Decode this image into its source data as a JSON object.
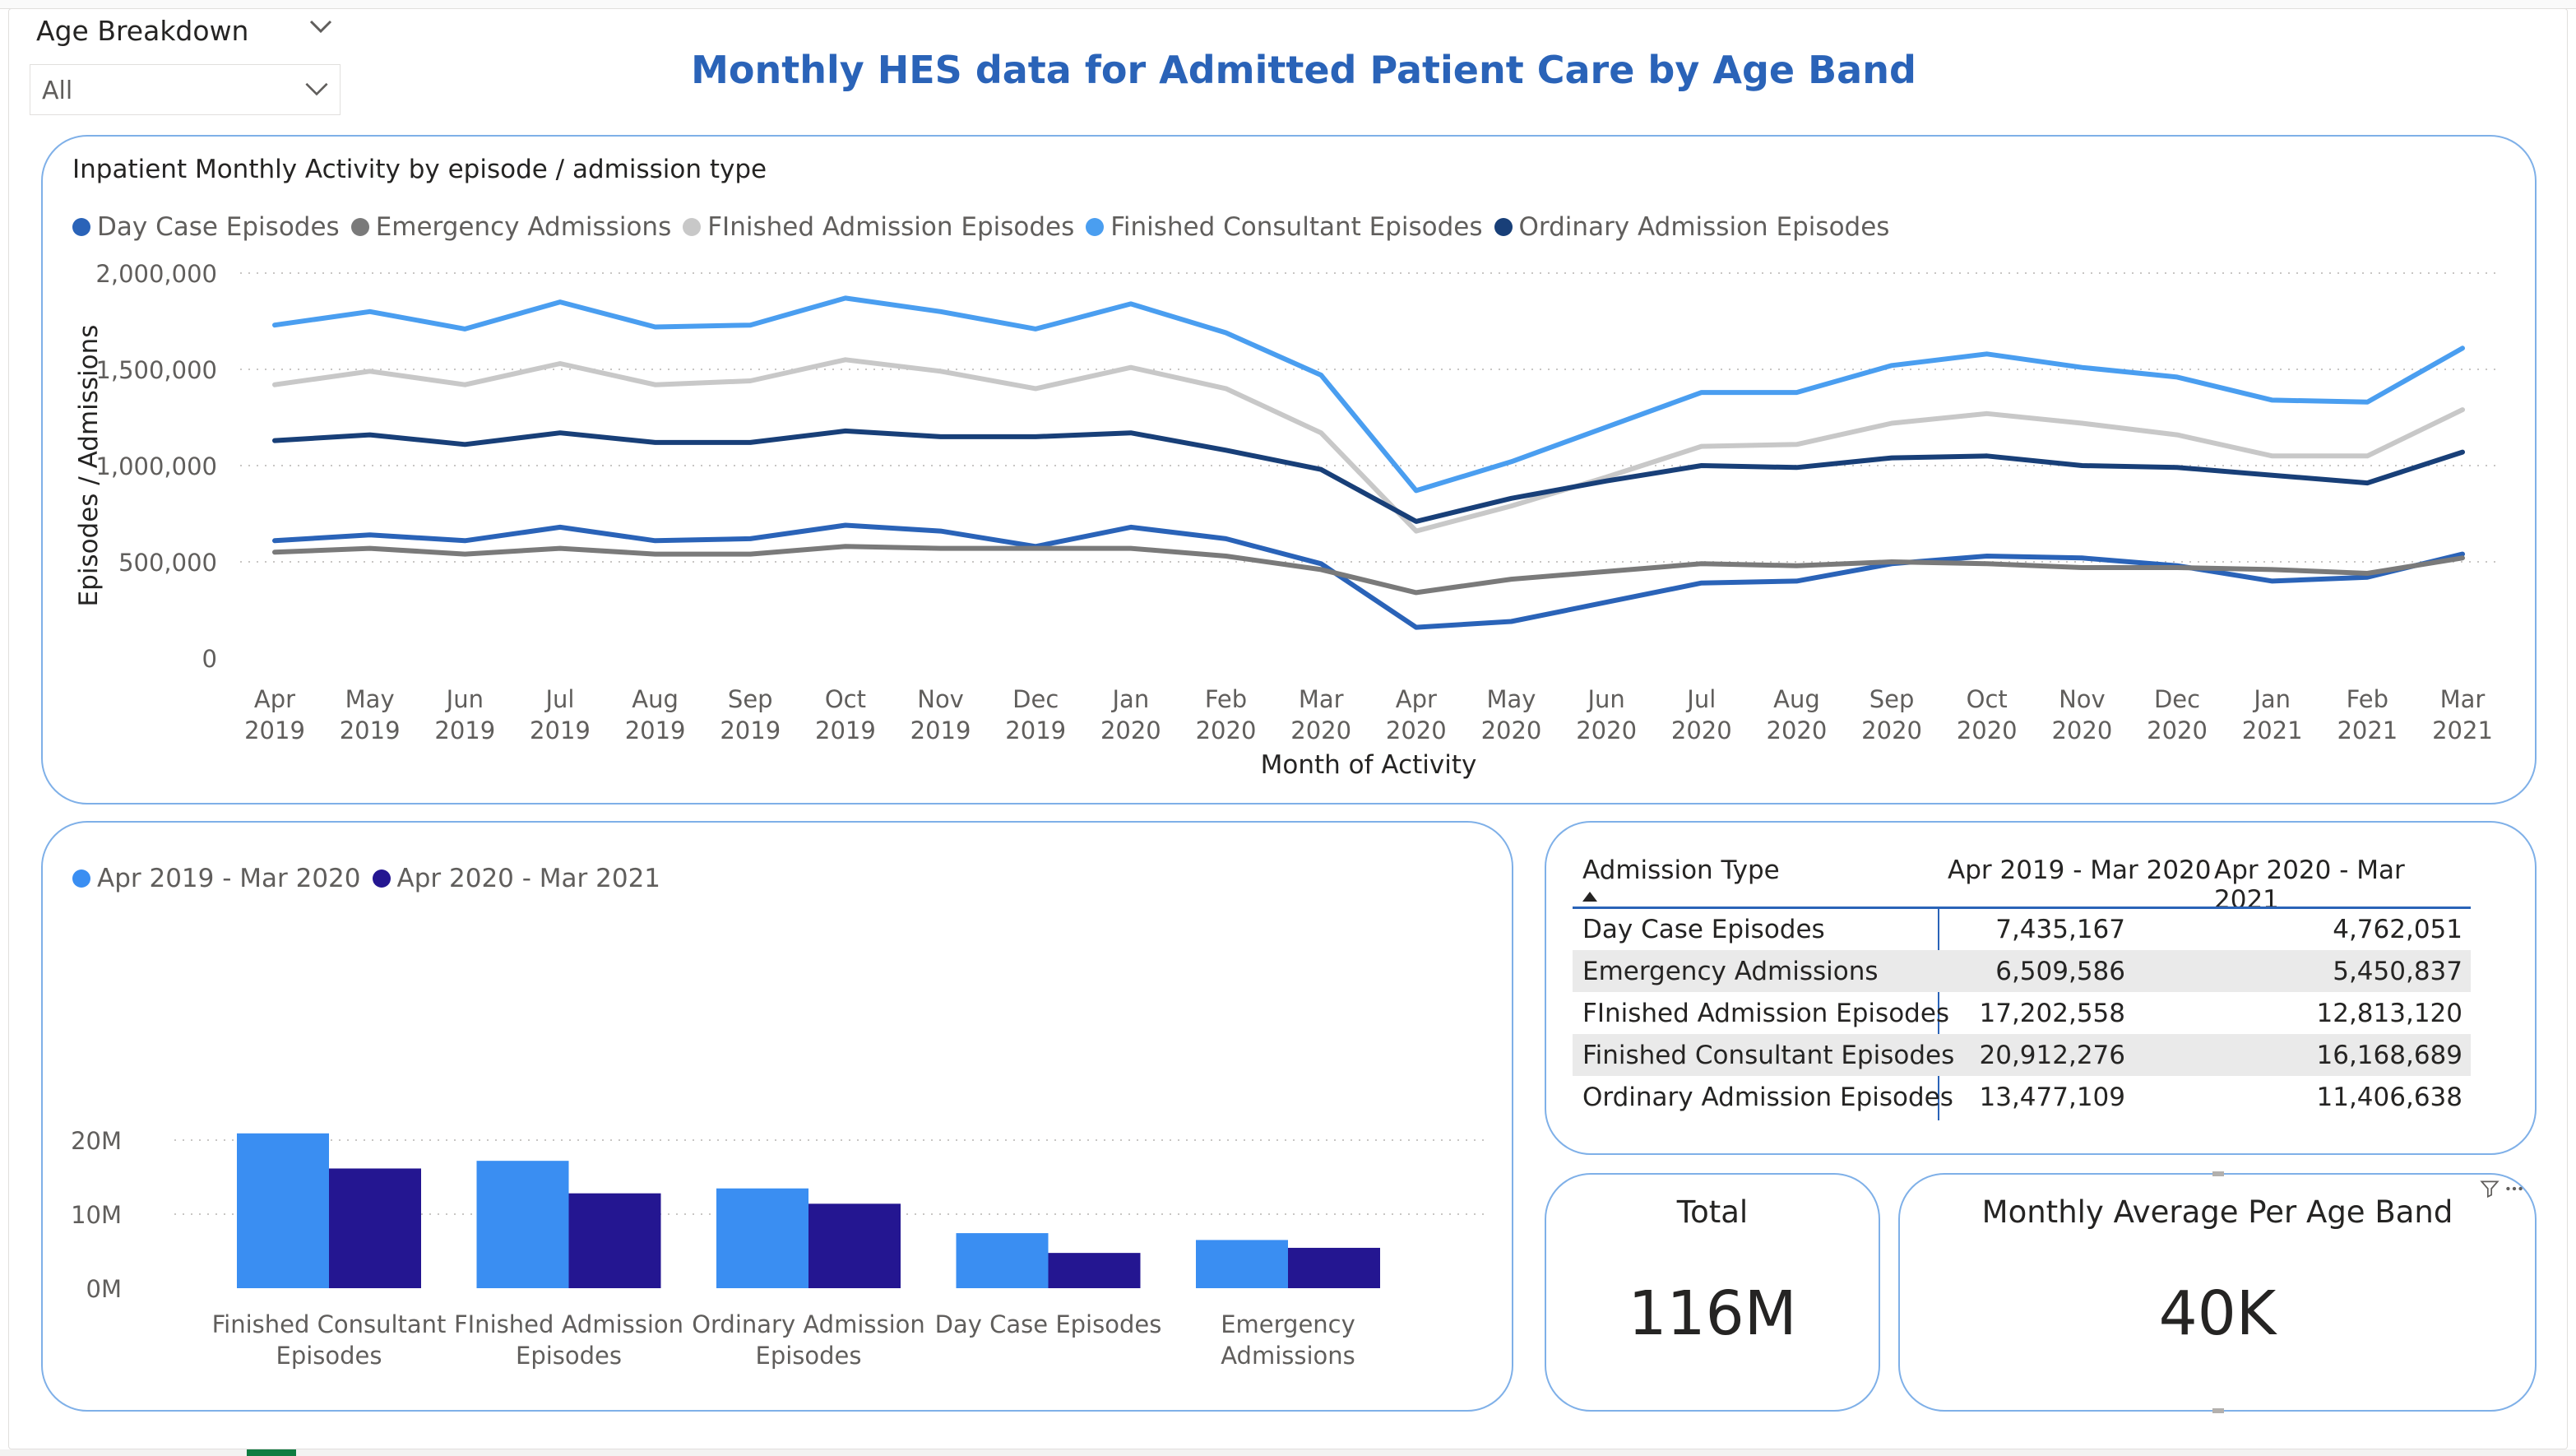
{
  "page_title": "Monthly HES data for Admitted Patient Care by Age Band",
  "slicer": {
    "label": "Age Breakdown",
    "value": "All"
  },
  "colors": {
    "day_case": "#2a63b8",
    "emergency": "#7a7a7a",
    "finished_admission": "#c8c8c8",
    "finished_consultant": "#4a9ef0",
    "ordinary": "#183f78",
    "period1": "#3a8ef2",
    "period2": "#241691",
    "card_border": "#7fb0e8"
  },
  "line_chart": {
    "title": "Inpatient Monthly Activity by episode / admission type",
    "xlabel": "Month of Activity",
    "ylabel": "Episodes / Admissions",
    "yticks": [
      "2,000,000",
      "1,500,000",
      "1,000,000",
      "500,000",
      "0"
    ]
  },
  "bar_chart": {
    "yticks": [
      "20M",
      "10M",
      "0M"
    ]
  },
  "table": {
    "headers": [
      "Admission Type",
      "Apr 2019 - Mar 2020",
      "Apr 2020 - Mar 2021"
    ],
    "rows": [
      [
        "Day Case Episodes",
        "7,435,167",
        "4,762,051"
      ],
      [
        "Emergency Admissions",
        "6,509,586",
        "5,450,837"
      ],
      [
        "FInished Admission Episodes",
        "17,202,558",
        "12,813,120"
      ],
      [
        "Finished Consultant Episodes",
        "20,912,276",
        "16,168,689"
      ],
      [
        "Ordinary Admission Episodes",
        "13,477,109",
        "11,406,638"
      ]
    ]
  },
  "kpis": {
    "total": {
      "title": "Total",
      "value": "116M"
    },
    "monthly_avg": {
      "title": "Monthly Average Per Age Band",
      "value": "40K"
    }
  },
  "chart_data": [
    {
      "type": "line",
      "title": "Inpatient Monthly Activity by episode / admission type",
      "xlabel": "Month of Activity",
      "ylabel": "Episodes / Admissions",
      "ylim": [
        0,
        2000000
      ],
      "grid": true,
      "legend": "top-left",
      "x": [
        [
          "Apr",
          "2019"
        ],
        [
          "May",
          "2019"
        ],
        [
          "Jun",
          "2019"
        ],
        [
          "Jul",
          "2019"
        ],
        [
          "Aug",
          "2019"
        ],
        [
          "Sep",
          "2019"
        ],
        [
          "Oct",
          "2019"
        ],
        [
          "Nov",
          "2019"
        ],
        [
          "Dec",
          "2019"
        ],
        [
          "Jan",
          "2020"
        ],
        [
          "Feb",
          "2020"
        ],
        [
          "Mar",
          "2020"
        ],
        [
          "Apr",
          "2020"
        ],
        [
          "May",
          "2020"
        ],
        [
          "Jun",
          "2020"
        ],
        [
          "Jul",
          "2020"
        ],
        [
          "Aug",
          "2020"
        ],
        [
          "Sep",
          "2020"
        ],
        [
          "Oct",
          "2020"
        ],
        [
          "Nov",
          "2020"
        ],
        [
          "Dec",
          "2020"
        ],
        [
          "Jan",
          "2021"
        ],
        [
          "Feb",
          "2021"
        ],
        [
          "Mar",
          "2021"
        ]
      ],
      "series": [
        {
          "name": "Day Case Episodes",
          "color": "#2a63b8",
          "values": [
            610000,
            640000,
            610000,
            680000,
            610000,
            620000,
            690000,
            660000,
            580000,
            680000,
            620000,
            490000,
            160000,
            190000,
            290000,
            390000,
            400000,
            490000,
            530000,
            520000,
            480000,
            400000,
            420000,
            540000
          ]
        },
        {
          "name": "Emergency Admissions",
          "color": "#7a7a7a",
          "values": [
            550000,
            570000,
            540000,
            570000,
            540000,
            540000,
            580000,
            570000,
            570000,
            570000,
            530000,
            460000,
            340000,
            410000,
            450000,
            490000,
            480000,
            500000,
            490000,
            470000,
            470000,
            460000,
            440000,
            520000
          ]
        },
        {
          "name": "FInished Admission Episodes",
          "color": "#c8c8c8",
          "values": [
            1420000,
            1490000,
            1420000,
            1530000,
            1420000,
            1440000,
            1550000,
            1490000,
            1400000,
            1510000,
            1400000,
            1170000,
            660000,
            790000,
            940000,
            1100000,
            1110000,
            1220000,
            1270000,
            1220000,
            1160000,
            1050000,
            1050000,
            1290000
          ]
        },
        {
          "name": "Finished Consultant Episodes",
          "color": "#4a9ef0",
          "values": [
            1730000,
            1800000,
            1710000,
            1850000,
            1720000,
            1730000,
            1870000,
            1800000,
            1710000,
            1840000,
            1690000,
            1470000,
            870000,
            1020000,
            1200000,
            1380000,
            1380000,
            1520000,
            1580000,
            1510000,
            1460000,
            1340000,
            1330000,
            1610000
          ]
        },
        {
          "name": "Ordinary Admission Episodes",
          "color": "#183f78",
          "values": [
            1130000,
            1160000,
            1110000,
            1170000,
            1120000,
            1120000,
            1180000,
            1150000,
            1150000,
            1170000,
            1080000,
            980000,
            710000,
            830000,
            920000,
            1000000,
            990000,
            1040000,
            1050000,
            1000000,
            990000,
            950000,
            910000,
            1070000
          ]
        }
      ]
    },
    {
      "type": "bar",
      "categories": [
        [
          "Finished Consultant",
          "Episodes"
        ],
        [
          "FInished Admission",
          "Episodes"
        ],
        [
          "Ordinary Admission",
          "Episodes"
        ],
        [
          "Day Case Episodes",
          ""
        ],
        [
          "Emergency",
          "Admissions"
        ]
      ],
      "ylim": [
        0,
        22000000
      ],
      "grid": true,
      "legend": "top-left",
      "series": [
        {
          "name": "Apr 2019 - Mar 2020",
          "color": "#3a8ef2",
          "values": [
            20912276,
            17202558,
            13477109,
            7435167,
            6509586
          ]
        },
        {
          "name": "Apr 2020 - Mar 2021",
          "color": "#241691",
          "values": [
            16168689,
            12813120,
            11406638,
            4762051,
            5450837
          ]
        }
      ]
    }
  ]
}
